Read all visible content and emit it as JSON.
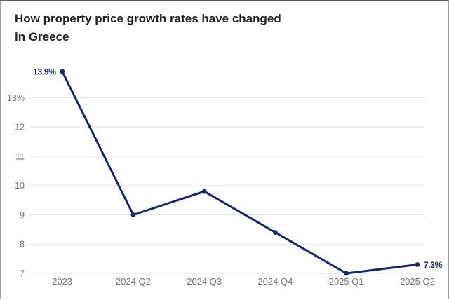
{
  "header": {
    "title_lines": [
      "How property price growth rates have changed",
      "in Greece"
    ],
    "title_text": "How property price growth rates have changed in Greece"
  },
  "chart_data": {
    "type": "line",
    "title": "How property price growth rates have changed in Greece",
    "categories": [
      "2023",
      "2024 Q2",
      "2024 Q3",
      "2024 Q4",
      "2025 Q1",
      "2025 Q2"
    ],
    "values": [
      13.9,
      9.0,
      9.8,
      8.4,
      7.0,
      7.3
    ],
    "y_ticks": [
      {
        "value": 13,
        "label": "13%"
      },
      {
        "value": 12,
        "label": "12"
      },
      {
        "value": 11,
        "label": "11"
      },
      {
        "value": 10,
        "label": "10"
      },
      {
        "value": 9,
        "label": "9"
      },
      {
        "value": 8,
        "label": "8"
      },
      {
        "value": 7,
        "label": "7"
      }
    ],
    "ylim": [
      7,
      13
    ],
    "grid": true,
    "legend": false,
    "first_point_label": "13.9%",
    "last_point_label": "7.3%",
    "colors": {
      "line": "#14266d",
      "marker": "#14266d",
      "annotation": "#14266d",
      "grid": "#e6e6e6",
      "axis_labels": "#757575",
      "title": "#212121",
      "background": "#ffffff"
    }
  }
}
